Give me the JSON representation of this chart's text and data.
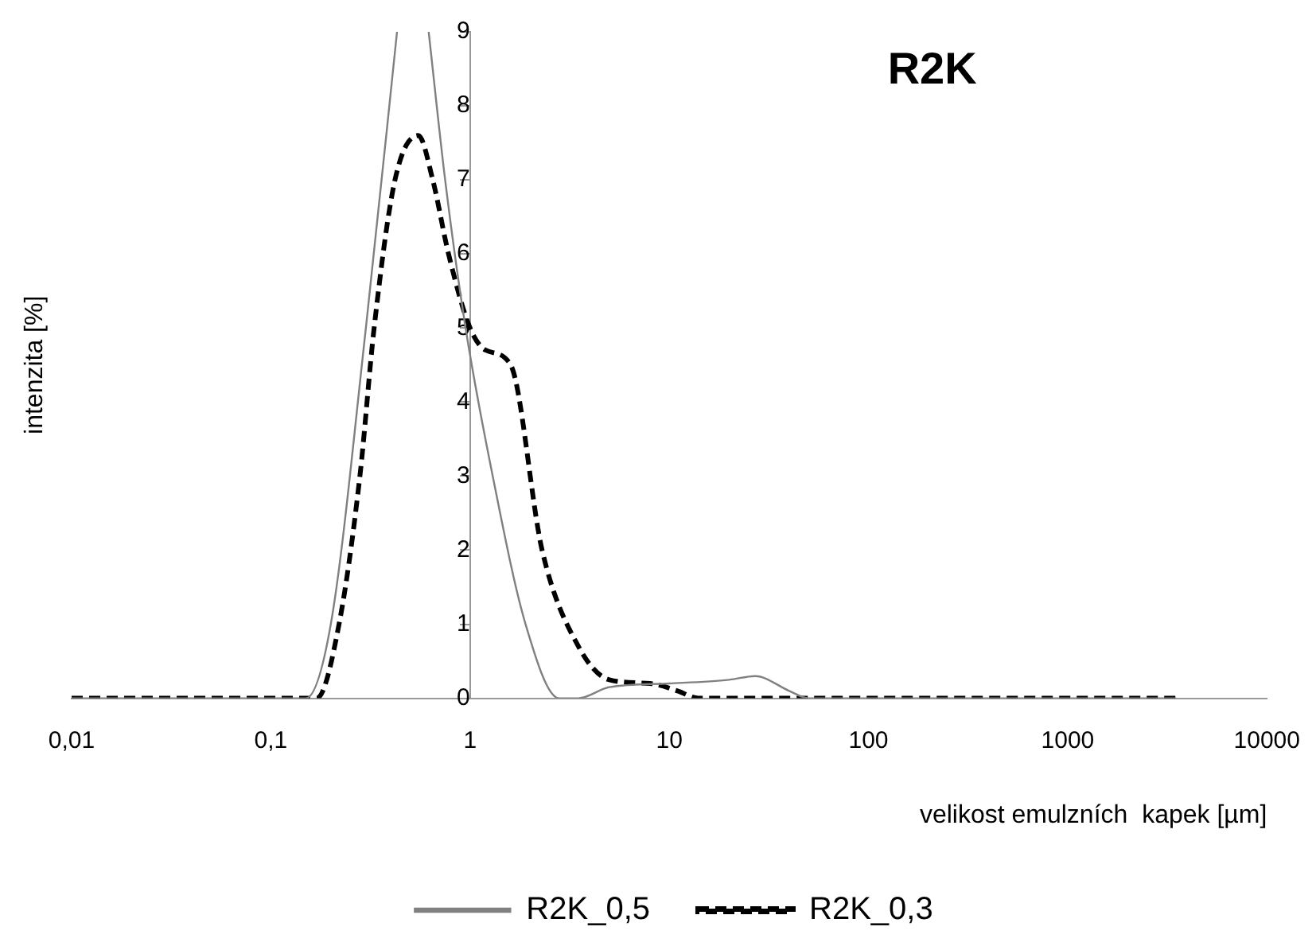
{
  "chart_data": {
    "type": "line",
    "title": "R2K",
    "xlabel": "velikost emulzních  kapek [µm]",
    "ylabel": "intenzita [%]",
    "log": "x",
    "xlim": [
      0.01,
      10000
    ],
    "xticks": [
      {
        "value": 0.01,
        "label": "0,01"
      },
      {
        "value": 0.1,
        "label": "0,1"
      },
      1,
      10,
      100,
      1000,
      10000
    ],
    "ylim": [
      0,
      9
    ],
    "yticks": [
      0,
      1,
      2,
      3,
      4,
      5,
      6,
      7,
      8,
      9
    ],
    "grid": false,
    "legend": "bottom",
    "marker": "none",
    "series": [
      {
        "name": "R2K_0,5",
        "color": "#808080",
        "line_style": "solid",
        "x": [
          0.01,
          0.15,
          0.2,
          0.3,
          0.43,
          0.52,
          0.62,
          0.75,
          0.95,
          1.3,
          1.9,
          2.8,
          3.5,
          5,
          10,
          20,
          27,
          40,
          50,
          3500
        ],
        "values": [
          0,
          0,
          1,
          5,
          9,
          null,
          9,
          7,
          5,
          3,
          1,
          0,
          0,
          0.15,
          0.2,
          0.25,
          0.3,
          0.1,
          0,
          0
        ]
      },
      {
        "name": "R2K_0,3",
        "color": "#000000",
        "line_style": "dashed",
        "x": [
          0.01,
          0.17,
          0.22,
          0.28,
          0.33,
          0.42,
          0.55,
          0.65,
          0.78,
          1,
          1.2,
          1.6,
          2.3,
          3.5,
          5,
          8,
          11,
          14,
          3500
        ],
        "values": [
          0,
          0,
          1,
          3,
          5,
          7,
          7.6,
          7,
          6,
          5,
          4.7,
          4.5,
          2,
          0.7,
          0.25,
          0.2,
          0.1,
          0,
          0
        ]
      }
    ]
  }
}
